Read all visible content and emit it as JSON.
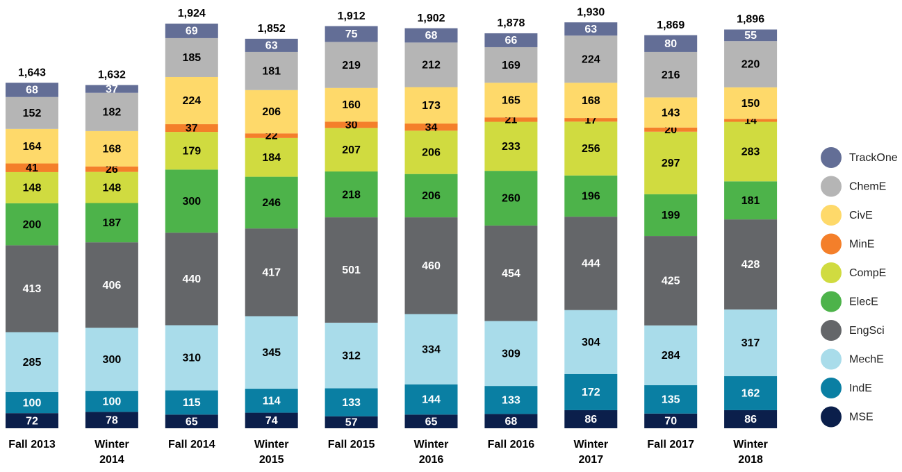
{
  "chart_data": {
    "type": "stacked_bar",
    "categories": [
      "Fall 2013",
      "Winter 2014",
      "Fall 2014",
      "Winter 2015",
      "Fall 2015",
      "Winter 2016",
      "Fall 2016",
      "Winter 2017",
      "Fall 2017",
      "Winter 2018"
    ],
    "series": [
      {
        "name": "MSE",
        "color": "#0b1f4b",
        "label_color": "#ffffff",
        "values": [
          72,
          78,
          65,
          74,
          57,
          65,
          68,
          86,
          70,
          86
        ]
      },
      {
        "name": "IndE",
        "color": "#0a7fa3",
        "label_color": "#ffffff",
        "values": [
          100,
          100,
          115,
          114,
          133,
          144,
          133,
          172,
          135,
          162
        ]
      },
      {
        "name": "MechE",
        "color": "#a9dcea",
        "label_color": "#000000",
        "values": [
          285,
          300,
          310,
          345,
          312,
          334,
          309,
          304,
          284,
          317
        ]
      },
      {
        "name": "EngSci",
        "color": "#646669",
        "label_color": "#ffffff",
        "values": [
          413,
          406,
          440,
          417,
          501,
          460,
          454,
          444,
          425,
          428
        ]
      },
      {
        "name": "ElecE",
        "color": "#4db34a",
        "label_color": "#000000",
        "values": [
          200,
          187,
          300,
          246,
          218,
          206,
          260,
          196,
          199,
          181
        ]
      },
      {
        "name": "CompE",
        "color": "#d0db40",
        "label_color": "#000000",
        "values": [
          148,
          148,
          179,
          184,
          207,
          206,
          233,
          256,
          297,
          283
        ]
      },
      {
        "name": "MinE",
        "color": "#f47f2a",
        "label_color": "#000000",
        "values": [
          41,
          26,
          37,
          22,
          30,
          34,
          21,
          17,
          20,
          14
        ]
      },
      {
        "name": "CivE",
        "color": "#fed96a",
        "label_color": "#000000",
        "values": [
          164,
          168,
          224,
          206,
          160,
          173,
          165,
          168,
          143,
          150
        ]
      },
      {
        "name": "ChemE",
        "color": "#b5b5b5",
        "label_color": "#000000",
        "values": [
          152,
          182,
          185,
          181,
          219,
          212,
          169,
          224,
          216,
          220
        ]
      },
      {
        "name": "TrackOne",
        "color": "#636e96",
        "label_color": "#ffffff",
        "values": [
          68,
          37,
          69,
          63,
          75,
          68,
          66,
          63,
          80,
          55
        ]
      }
    ],
    "totals": [
      1643,
      1632,
      1924,
      1852,
      1912,
      1902,
      1878,
      1930,
      1869,
      1896
    ],
    "total_labels": [
      "1,643",
      "1,632",
      "1,924",
      "1,852",
      "1,912",
      "1,902",
      "1,878",
      "1,930",
      "1,869",
      "1,896"
    ],
    "legend": "right"
  }
}
